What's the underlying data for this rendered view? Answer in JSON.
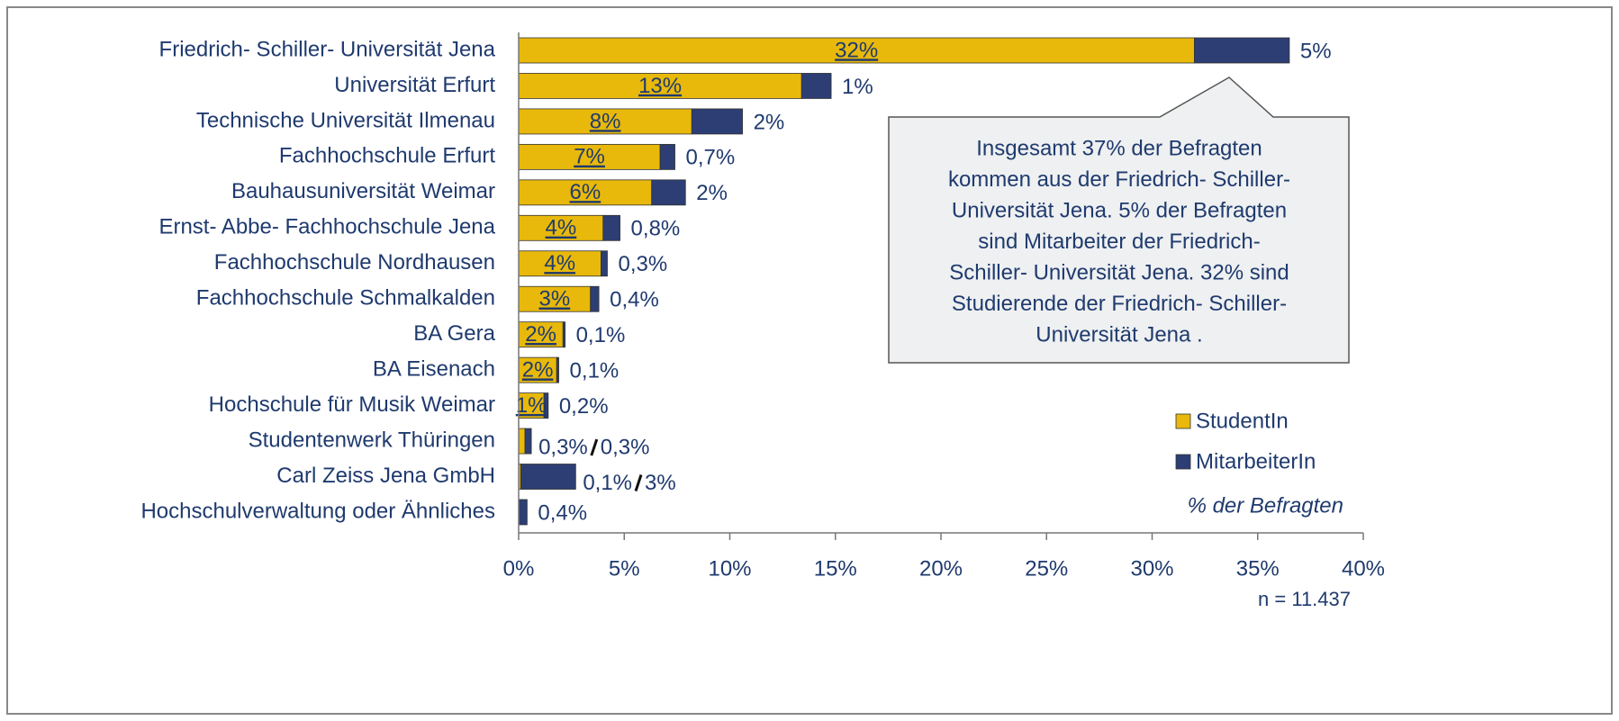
{
  "chart_data": {
    "type": "stacked-barh",
    "categories": [
      "Friedrich- Schiller- Universität Jena",
      "Universität Erfurt",
      "Technische Universität Ilmenau",
      "Fachhochschule Erfurt",
      "Bauhausuniversität Weimar",
      "Ernst- Abbe- Fachhochschule Jena",
      "Fachhochschule Nordhausen",
      "Fachhochschule Schmalkalden",
      "BA Gera",
      "BA Eisenach",
      "Hochschule für Musik Weimar",
      "Studentenwerk Thüringen",
      "Carl Zeiss Jena GmbH",
      "Hochschulverwaltung oder Ähnliches"
    ],
    "series": [
      {
        "name": "StudentIn",
        "color": "#e8b90b",
        "values": [
          32,
          13.4,
          8.2,
          6.7,
          6.3,
          4.0,
          3.9,
          3.4,
          2.1,
          1.8,
          1.2,
          0.3,
          0.1,
          null
        ],
        "value_labels": [
          "32%",
          "13%",
          "8%",
          "7%",
          "6%",
          "4%",
          "4%",
          "3%",
          "2%",
          "2%",
          "1%",
          "0,3%",
          "0,1%",
          null
        ]
      },
      {
        "name": "MitarbeiterIn",
        "color": "#2c3e73",
        "values": [
          4.5,
          1.4,
          2.4,
          0.7,
          1.6,
          0.8,
          0.3,
          0.4,
          0.1,
          0.1,
          0.2,
          0.3,
          2.6,
          0.4
        ],
        "value_labels": [
          "5%",
          "1%",
          "2%",
          "0,7%",
          "2%",
          "0,8%",
          "0,3%",
          "0,4%",
          "0,1%",
          "0,1%",
          "0,2%",
          "0,3%",
          "3%",
          "0,4%"
        ]
      }
    ],
    "xlim": [
      0,
      40
    ],
    "xticks": [
      {
        "value": 0,
        "label": "0%"
      },
      {
        "value": 5,
        "label": "5%"
      },
      {
        "value": 10,
        "label": "10%"
      },
      {
        "value": 15,
        "label": "15%"
      },
      {
        "value": 20,
        "label": "20%"
      },
      {
        "value": 25,
        "label": "25%"
      },
      {
        "value": 30,
        "label": "30%"
      },
      {
        "value": 35,
        "label": "35%"
      },
      {
        "value": 40,
        "label": "40%"
      }
    ],
    "annotation": [
      "Insgesamt  37% der Befragten",
      "kommen aus der Friedrich- Schiller-",
      "Universität Jena. 5% der Befragten",
      "sind Mitarbeiter der Friedrich-",
      "Schiller- Universität Jena. 32% sind",
      "Studierende der Friedrich- Schiller-",
      "Universität Jena ."
    ],
    "note": "% der Befragten",
    "sample": "n = 11.437",
    "legend": "right"
  }
}
